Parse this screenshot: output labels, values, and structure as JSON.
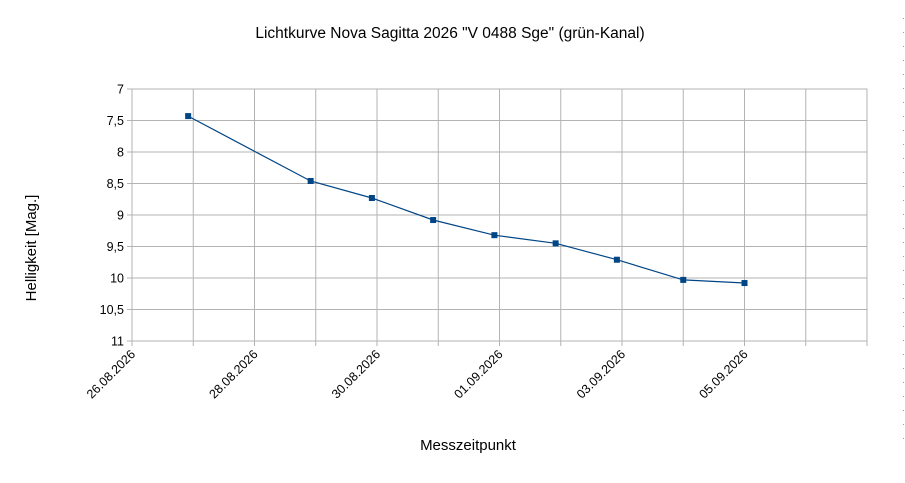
{
  "chart_data": {
    "type": "line",
    "title": "Lichtkurve Nova Sagitta 2026 \"V 0488 Sge\" (grün-Kanal)",
    "xlabel": "Messzeitpunkt",
    "ylabel": "Helligkeit [Mag.]",
    "y_inverted": true,
    "ylim": [
      7,
      11
    ],
    "yticks": [
      "7",
      "7,5",
      "8",
      "8,5",
      "9",
      "9,5",
      "10",
      "10,5",
      "11"
    ],
    "xlim": [
      "26.08.2026",
      "07.09.2026"
    ],
    "xticks": [
      "26.08.2026",
      "28.08.2026",
      "30.08.2026",
      "01.09.2026",
      "03.09.2026",
      "05.09.2026"
    ],
    "grid": true,
    "series": [
      {
        "color": "#004586",
        "x": [
          "26.08.2026 22:00",
          "28.08.2026 22:00",
          "29.08.2026 22:00",
          "30.08.2026 22:00",
          "31.08.2026 22:00",
          "01.09.2026 22:00",
          "02.09.2026 22:00",
          "04.09.2026 00:00",
          "05.09.2026 00:00"
        ],
        "values": [
          7.43,
          8.46,
          8.73,
          9.08,
          9.32,
          9.45,
          9.71,
          10.03,
          10.08
        ]
      }
    ]
  }
}
